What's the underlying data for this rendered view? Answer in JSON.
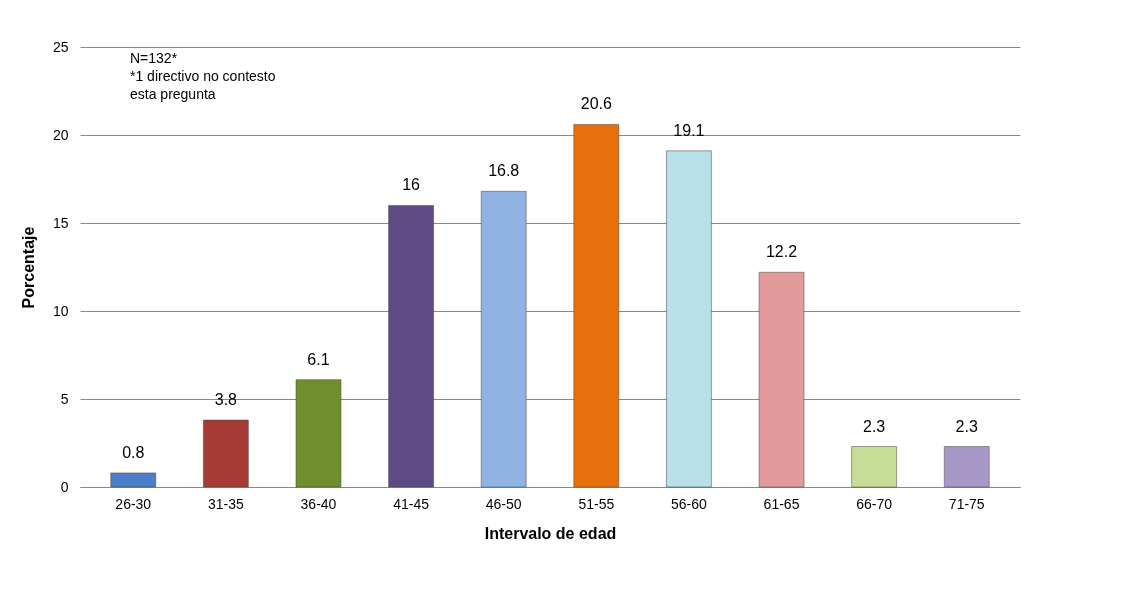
{
  "chart_data": {
    "type": "bar",
    "xlabel": "Intervalo de edad",
    "ylabel": "Porcentaje",
    "categories": [
      "26-30",
      "31-35",
      "36-40",
      "41-45",
      "46-50",
      "51-55",
      "56-60",
      "61-65",
      "66-70",
      "71-75"
    ],
    "values": [
      0.8,
      3.8,
      6.1,
      16,
      16.8,
      20.6,
      19.1,
      12.2,
      2.3,
      2.3
    ],
    "colors": [
      "#4a7fc8",
      "#a83a36",
      "#6f8f2e",
      "#5f4a86",
      "#8fb4e3",
      "#e8700c",
      "#b7e0e8",
      "#e39a9a",
      "#c7dc96",
      "#a898c8"
    ],
    "ylim": [
      0,
      25
    ],
    "yticks": [
      0,
      5,
      10,
      15,
      20,
      25
    ],
    "grid": "y",
    "data_labels": true,
    "legend": false,
    "annotations": [
      "N=132*",
      "*1 directivo no contesto",
      "esta pregunta"
    ]
  }
}
